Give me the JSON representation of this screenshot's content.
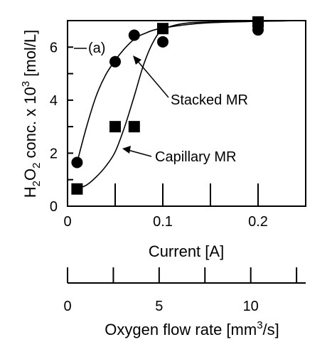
{
  "chart_data": {
    "type": "scatter",
    "panel_label": "(a)",
    "xlabel": "Current [A]",
    "xlim": [
      0,
      0.25
    ],
    "x_ticks": [
      0,
      0.05,
      0.1,
      0.15,
      0.2,
      0.25
    ],
    "x_tick_labels": [
      {
        "value": 0,
        "label": "0"
      },
      {
        "value": 0.1,
        "label": "0.1"
      },
      {
        "value": 0.2,
        "label": "0.2"
      }
    ],
    "ylabel": {
      "prefix": "H",
      "sub1": "2",
      "mid": "O",
      "sub2": "2",
      "text": " conc. x 10",
      "sup": "3",
      "suffix": " [mol/L]"
    },
    "ylim": [
      0,
      7
    ],
    "y_ticks": [
      0,
      1,
      2,
      3,
      4,
      5,
      6,
      7
    ],
    "y_tick_labels": [
      {
        "value": 0,
        "label": "0"
      },
      {
        "value": 2,
        "label": "2"
      },
      {
        "value": 4,
        "label": "4"
      },
      {
        "value": 6,
        "label": "6"
      }
    ],
    "secondary_x": {
      "label": {
        "prefix": "Oxygen flow rate [mm",
        "sup": "3",
        "suffix": "/s]"
      },
      "range": [
        0,
        13
      ],
      "ticks": [
        0,
        2.5,
        5,
        7.5,
        10,
        12.5
      ],
      "tick_labels": [
        {
          "value": 0,
          "label": "0"
        },
        {
          "value": 5,
          "label": "5"
        },
        {
          "value": 10,
          "label": "10"
        }
      ]
    },
    "series": [
      {
        "name": "Stacked MR",
        "marker": "circle",
        "points": [
          {
            "x": 0.01,
            "y": 1.65
          },
          {
            "x": 0.05,
            "y": 5.45
          },
          {
            "x": 0.07,
            "y": 6.45
          },
          {
            "x": 0.1,
            "y": 6.2
          },
          {
            "x": 0.2,
            "y": 6.65
          }
        ],
        "curve": [
          [
            0.01,
            1.65
          ],
          [
            0.02,
            3.0
          ],
          [
            0.03,
            4.15
          ],
          [
            0.04,
            4.95
          ],
          [
            0.05,
            5.5
          ],
          [
            0.06,
            5.95
          ],
          [
            0.07,
            6.3
          ],
          [
            0.08,
            6.5
          ],
          [
            0.1,
            6.72
          ],
          [
            0.15,
            6.92
          ],
          [
            0.245,
            7.0
          ]
        ]
      },
      {
        "name": "Capillary MR",
        "marker": "square",
        "points": [
          {
            "x": 0.01,
            "y": 0.65
          },
          {
            "x": 0.05,
            "y": 3.0
          },
          {
            "x": 0.07,
            "y": 3.0
          },
          {
            "x": 0.1,
            "y": 6.7
          },
          {
            "x": 0.2,
            "y": 6.95
          }
        ],
        "curve": [
          [
            0.01,
            0.65
          ],
          [
            0.02,
            0.8
          ],
          [
            0.03,
            1.1
          ],
          [
            0.04,
            1.5
          ],
          [
            0.05,
            2.05
          ],
          [
            0.06,
            3.0
          ],
          [
            0.07,
            4.15
          ],
          [
            0.08,
            5.35
          ],
          [
            0.09,
            6.2
          ],
          [
            0.1,
            6.65
          ],
          [
            0.12,
            6.88
          ],
          [
            0.15,
            6.95
          ],
          [
            0.245,
            7.0
          ]
        ]
      }
    ],
    "annotations": [
      {
        "text": "Stacked MR",
        "target_series": 0
      },
      {
        "text": "Capillary MR",
        "target_series": 1
      }
    ]
  }
}
